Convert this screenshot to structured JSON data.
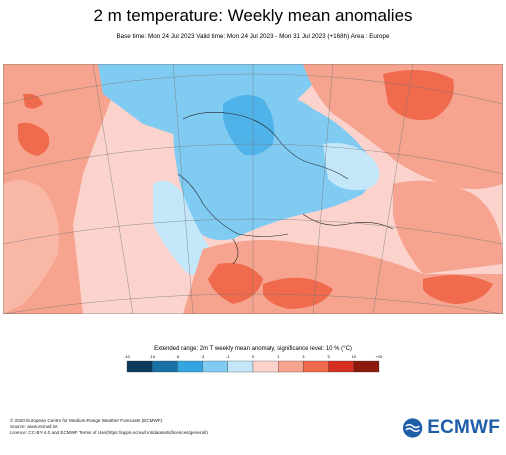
{
  "header": {
    "title": "2 m temperature: Weekly mean anomalies",
    "subtitle": "Base time: Mon 24 Jul 2023 Valid time: Mon 24 Jul 2023 - Mon 31 Jul 2023 (+168h) Area : Europe"
  },
  "legend": {
    "title": "Extended range: 2m T weekly mean anomaly, significance level: 10 % (°C)",
    "ticks": [
      "-10",
      "-5",
      "-3",
      "-1",
      "0",
      "1",
      "3",
      "5",
      "10",
      "+10"
    ],
    "ticks_display": [
      "-10",
      "-10",
      "-5",
      "-3",
      "-1",
      "0",
      "1",
      "3",
      "5",
      "10",
      "+10"
    ],
    "colors": [
      "#053061",
      "#2166ac",
      "#4393c3",
      "#92c5de",
      "#d1e5f0",
      "#fddbc7",
      "#f4a582",
      "#d6604d",
      "#b2182b",
      "#67001f"
    ],
    "colors_display": [
      "#0b3a5c",
      "#1a71a8",
      "#33a5e0",
      "#7fcbf2",
      "#c4e6f9",
      "#fbd3cc",
      "#f6a48f",
      "#f06a4d",
      "#d62f1f",
      "#8b1a0c"
    ]
  },
  "map": {
    "regions": {
      "cold_anomaly": "Central and Northern Europe, Scandinavia",
      "warm_anomaly": "Iberia, North Africa, Eastern Mediterranean, Russia, Atlantic"
    }
  },
  "footer": {
    "line1": "© 2020 European Centre for Medium-Range Weather Forecasts (ECMWF)",
    "line2": "Source: www.ecmwf.int",
    "line3": "Licence: CC-BY-4.0 and ECMWF Terms of Use(https://apps.ecmwf.int/datasets/licences/general/)"
  },
  "logo": {
    "text": "ECMWF",
    "color": "#1e5ea8"
  }
}
